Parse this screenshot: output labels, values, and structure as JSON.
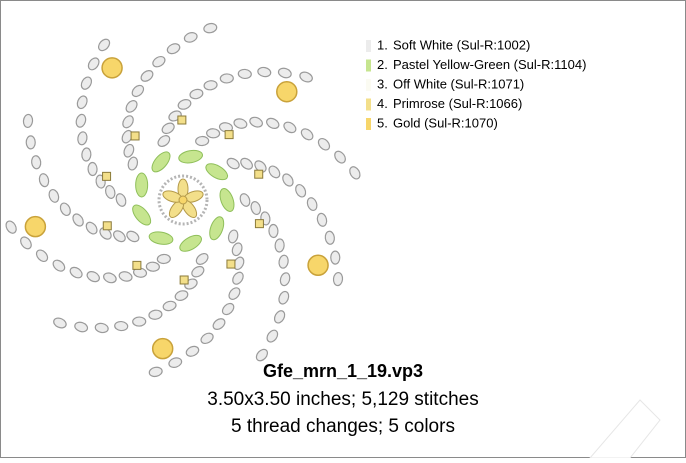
{
  "design": {
    "threads": [
      {
        "number": "1.",
        "name": "Soft White (Sul-R:1002)",
        "color": "#ececec"
      },
      {
        "number": "2.",
        "name": "Pastel Yellow-Green (Sul-R:1104)",
        "color": "#c6e58f"
      },
      {
        "number": "3.",
        "name": "Off White (Sul-R:1071)",
        "color": "#fbfbf2"
      },
      {
        "number": "4.",
        "name": "Primrose (Sul-R:1066)",
        "color": "#f3df8a"
      },
      {
        "number": "5.",
        "name": "Gold (Sul-R:1070)",
        "color": "#f7d66a"
      }
    ],
    "file_name": "Gfe_mrn_1_19.vp3",
    "size_info": "3.50x3.50 inches; 5,129 stitches",
    "change_info": "5 thread changes; 5 colors"
  }
}
